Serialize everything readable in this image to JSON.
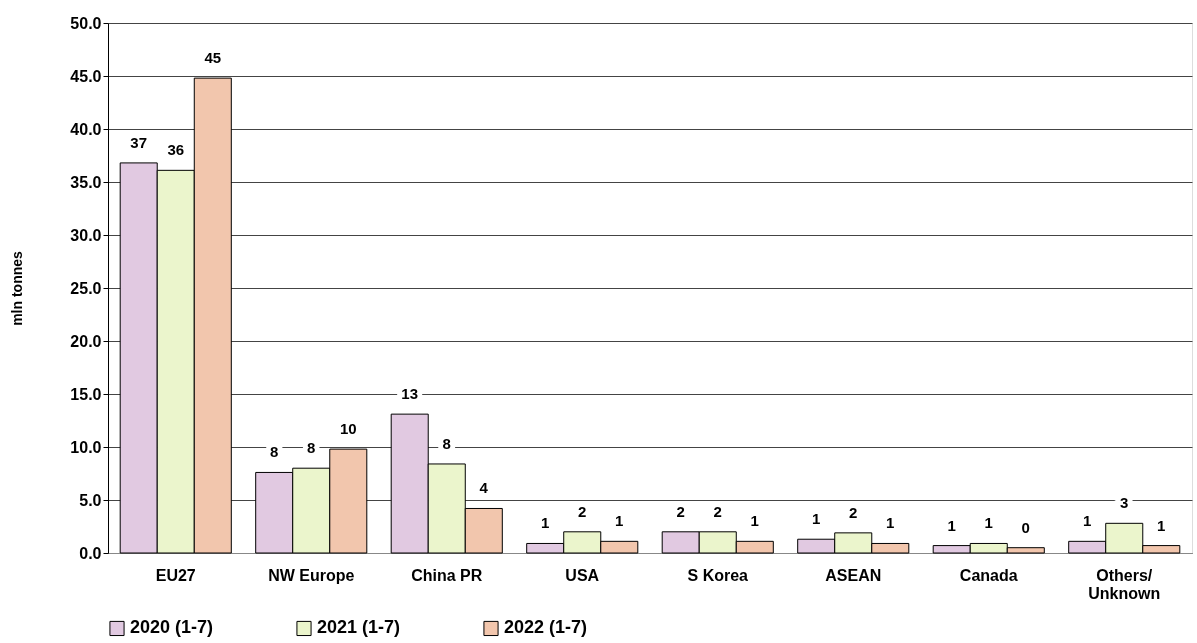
{
  "chart_data": {
    "type": "bar",
    "ylabel": "mln tonnes",
    "categories": [
      "EU27",
      "NW Europe",
      "China PR",
      "USA",
      "S Korea",
      "ASEAN",
      "Canada",
      "Others/\nUnknown"
    ],
    "series": [
      {
        "name": "2020 (1-7)",
        "color": "#e1c9e1",
        "values": [
          36.8,
          7.6,
          13.1,
          0.9,
          2.0,
          1.3,
          0.7,
          1.1
        ],
        "value_labels": [
          "37",
          "8",
          "13",
          "1",
          "2",
          "1",
          "1",
          "1"
        ]
      },
      {
        "name": "2021 (1-7)",
        "color": "#ebf5cc",
        "values": [
          36.1,
          8.0,
          8.4,
          2.0,
          2.0,
          1.9,
          0.9,
          2.8
        ],
        "value_labels": [
          "36",
          "8",
          "8",
          "2",
          "2",
          "2",
          "1",
          "3"
        ]
      },
      {
        "name": "2022 (1-7)",
        "color": "#f2c6ad",
        "values": [
          44.8,
          9.8,
          4.2,
          1.1,
          1.1,
          0.9,
          0.5,
          0.7
        ],
        "value_labels": [
          "45",
          "10",
          "4",
          "1",
          "1",
          "1",
          "0",
          "1"
        ]
      }
    ],
    "ylim": [
      0,
      50
    ],
    "yticks": [
      {
        "value": 0,
        "label": "0.0"
      },
      {
        "value": 5,
        "label": "5.0"
      },
      {
        "value": 10,
        "label": "10.0"
      },
      {
        "value": 15,
        "label": "15.0"
      },
      {
        "value": 20,
        "label": "20.0"
      },
      {
        "value": 25,
        "label": "25.0"
      },
      {
        "value": 30,
        "label": "30.0"
      },
      {
        "value": 35,
        "label": "35.0"
      },
      {
        "value": 40,
        "label": "40.0"
      },
      {
        "value": 45,
        "label": "45.0"
      },
      {
        "value": 50,
        "label": "50.0"
      }
    ],
    "grid": "y",
    "legend": "bottom"
  }
}
